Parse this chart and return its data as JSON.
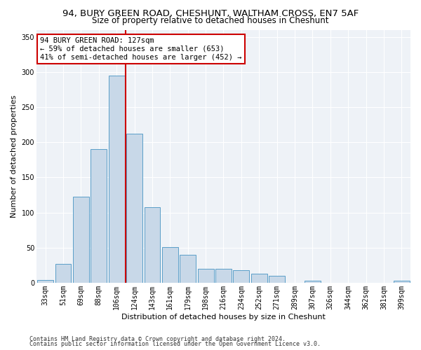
{
  "title1": "94, BURY GREEN ROAD, CHESHUNT, WALTHAM CROSS, EN7 5AF",
  "title2": "Size of property relative to detached houses in Cheshunt",
  "xlabel": "Distribution of detached houses by size in Cheshunt",
  "ylabel": "Number of detached properties",
  "categories": [
    "33sqm",
    "51sqm",
    "69sqm",
    "88sqm",
    "106sqm",
    "124sqm",
    "143sqm",
    "161sqm",
    "179sqm",
    "198sqm",
    "216sqm",
    "234sqm",
    "252sqm",
    "271sqm",
    "289sqm",
    "307sqm",
    "326sqm",
    "344sqm",
    "362sqm",
    "381sqm",
    "399sqm"
  ],
  "values": [
    4,
    27,
    122,
    190,
    295,
    212,
    107,
    51,
    40,
    20,
    20,
    18,
    13,
    10,
    0,
    3,
    0,
    0,
    0,
    0,
    3
  ],
  "bar_color": "#c8d8e8",
  "bar_edge_color": "#5a9ec8",
  "highlight_bar_index": 4,
  "highlight_color": "#cc0000",
  "annotation_line1": "94 BURY GREEN ROAD: 127sqm",
  "annotation_line2": "← 59% of detached houses are smaller (653)",
  "annotation_line3": "41% of semi-detached houses are larger (452) →",
  "annotation_box_color": "white",
  "annotation_box_edge_color": "#cc0000",
  "ylim": [
    0,
    360
  ],
  "yticks": [
    0,
    50,
    100,
    150,
    200,
    250,
    300,
    350
  ],
  "background_color": "#eef2f7",
  "footer1": "Contains HM Land Registry data © Crown copyright and database right 2024.",
  "footer2": "Contains public sector information licensed under the Open Government Licence v3.0.",
  "title_fontsize": 9.5,
  "subtitle_fontsize": 8.5,
  "tick_fontsize": 7,
  "axis_label_fontsize": 8,
  "annotation_fontsize": 7.5,
  "footer_fontsize": 6
}
